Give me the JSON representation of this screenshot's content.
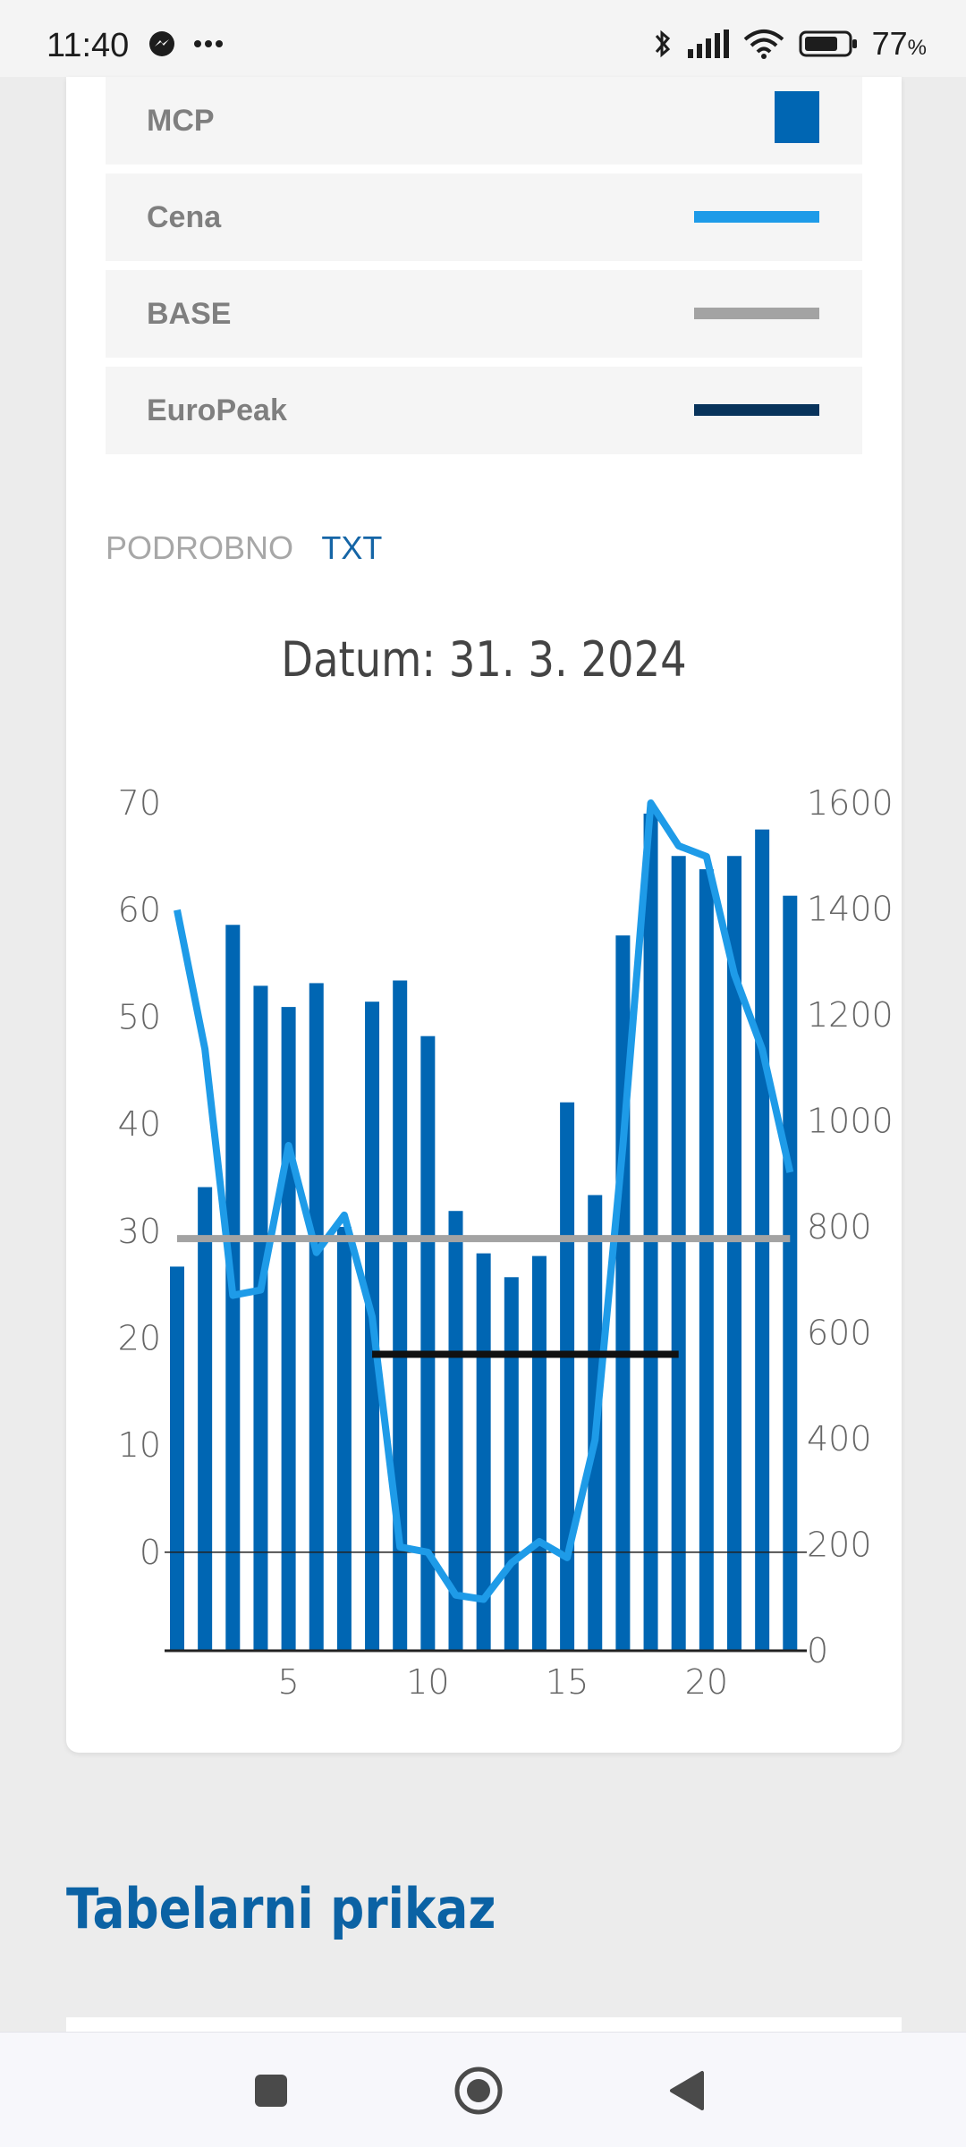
{
  "status_bar": {
    "time": "11:40",
    "battery": "77",
    "battery_unit": "%"
  },
  "legend": [
    {
      "label": "MCP",
      "color": "#0066b3",
      "kind": "box"
    },
    {
      "label": "Cena",
      "color": "#1e9be8",
      "kind": "line"
    },
    {
      "label": "BASE",
      "color": "#a3a3a3",
      "kind": "line"
    },
    {
      "label": "EuroPeak",
      "color": "#08335b",
      "kind": "line"
    }
  ],
  "tabs": {
    "podrobno": "PODROBNO",
    "txt": "TXT"
  },
  "chart_title": "Datum: 31. 3. 2024",
  "chart_data": {
    "type": "bar",
    "x": [
      1,
      2,
      3,
      4,
      5,
      6,
      7,
      8,
      9,
      10,
      11,
      12,
      13,
      14,
      15,
      16,
      17,
      18,
      19,
      20,
      21,
      22,
      23
    ],
    "x_ticks": [
      5,
      10,
      15,
      20
    ],
    "left_axis": {
      "ticks": [
        0,
        10,
        20,
        30,
        40,
        50,
        60,
        70
      ],
      "ylim": [
        -9.2,
        70
      ]
    },
    "right_axis": {
      "ticks": [
        0,
        200,
        400,
        600,
        800,
        1000,
        1200,
        1400,
        1600
      ],
      "ylim": [
        0,
        1600
      ]
    },
    "series": [
      {
        "name": "MCP",
        "axis": "right",
        "type": "bar",
        "color": "#0066b3",
        "values": [
          725,
          875,
          1370,
          1255,
          1215,
          1260,
          800,
          1225,
          1265,
          1160,
          830,
          750,
          705,
          745,
          1035,
          860,
          1350,
          1580,
          1500,
          1475,
          1500,
          1550,
          1425
        ]
      },
      {
        "name": "Cena",
        "axis": "left",
        "type": "line",
        "color": "#1e9be8",
        "values": [
          60,
          47,
          24,
          24.5,
          38,
          28,
          31.5,
          22,
          0.5,
          0,
          -4,
          -4.4,
          -1,
          1,
          -0.5,
          10.5,
          38,
          70,
          66,
          65,
          54,
          47,
          35.5
        ]
      },
      {
        "name": "BASE",
        "axis": "left",
        "type": "line",
        "color": "#a3a3a3",
        "values": [
          29.3,
          29.3,
          29.3,
          29.3,
          29.3,
          29.3,
          29.3,
          29.3,
          29.3,
          29.3,
          29.3,
          29.3,
          29.3,
          29.3,
          29.3,
          29.3,
          29.3,
          29.3,
          29.3,
          29.3,
          29.3,
          29.3,
          29.3
        ]
      },
      {
        "name": "EuroPeak",
        "axis": "left",
        "type": "line",
        "color": "#111111",
        "x": [
          8,
          19
        ],
        "values": [
          18.5,
          18.5
        ]
      }
    ],
    "grid": false
  },
  "section_title": "Tabelarni prikaz"
}
